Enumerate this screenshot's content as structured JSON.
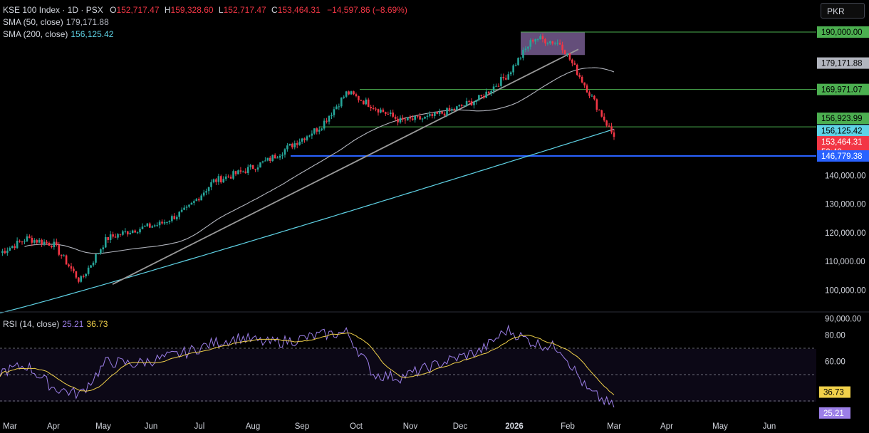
{
  "header": {
    "symbol_line": "KSE 100 Index · 1D · PSX",
    "open_label": "O",
    "open": "152,717.47",
    "high_label": "H",
    "high": "159,328.60",
    "low_label": "L",
    "low": "152,717.47",
    "close_label": "C",
    "close": "153,464.31",
    "change": "−14,597.86 (−8.69%)",
    "sma50_label": "SMA (50, close)",
    "sma50_value": "179,171.88",
    "sma200_label": "SMA (200, close)",
    "sma200_value": "156,125.42",
    "rsi_label": "RSI (14, close)",
    "rsi_value": "25.21",
    "rsi_ma_value": "36.73",
    "currency": "PKR"
  },
  "colors": {
    "up": "#26a69a",
    "down": "#f23645",
    "sma50": "#b2b5be",
    "sma200": "#5fd3e6",
    "trend": "#9a9a9a",
    "support": "#2962ff",
    "level": "#4caf50",
    "zone": "#8e6fae",
    "rsi": "#9c7fe8",
    "rsi_ma": "#f0d04a"
  },
  "chart_data": [
    {
      "type": "candlestick",
      "title": "KSE 100 Index · 1D · PSX",
      "ylim": [
        82000,
        194000
      ],
      "y_ticks": [
        "190,000.00",
        "140,000.00",
        "130,000.00",
        "120,000.00",
        "110,000.00",
        "100,000.00",
        "90,000.00"
      ],
      "x_ticks": [
        "Mar",
        "Apr",
        "May",
        "Jun",
        "Jul",
        "Aug",
        "Sep",
        "Oct",
        "Nov",
        "Dec",
        "2026",
        "Feb",
        "Mar",
        "Apr",
        "May",
        "Jun"
      ],
      "price_series_approx": [
        [
          "Mar",
          113000
        ],
        [
          "Apr",
          118000
        ],
        [
          "Apr-mid",
          116000
        ],
        [
          "May",
          103000
        ],
        [
          "May-mid",
          118000
        ],
        [
          "Jun",
          121000
        ],
        [
          "Jun-mid",
          123000
        ],
        [
          "Jul",
          128000
        ],
        [
          "Jul-mid",
          138000
        ],
        [
          "Aug",
          141000
        ],
        [
          "Aug-mid",
          145000
        ],
        [
          "Sep",
          151000
        ],
        [
          "Sep-mid",
          157000
        ],
        [
          "Oct",
          169000
        ],
        [
          "Oct-mid",
          164000
        ],
        [
          "Nov",
          159000
        ],
        [
          "Nov-mid",
          160000
        ],
        [
          "Dec",
          163000
        ],
        [
          "Dec-mid",
          167000
        ],
        [
          "2026",
          175000
        ],
        [
          "Jan-mid",
          188000
        ],
        [
          "Feb",
          186000
        ],
        [
          "Feb-mid",
          170000
        ],
        [
          "Feb-end",
          153464
        ]
      ],
      "series": [
        {
          "name": "SMA (50, close)",
          "last": 179171.88
        },
        {
          "name": "SMA (200, close)",
          "last": 156125.42
        }
      ],
      "levels": {
        "resistance_high": 190000.0,
        "sma50_last": 179171.88,
        "level_mid": 169971.07,
        "level_low": 156923.99,
        "sma200_last": 156125.42,
        "last_close": 153464.31,
        "support": 146779.38
      },
      "price_badges": [
        {
          "value": "190,000.00"
        },
        {
          "value": "179,171.88"
        },
        {
          "value": "169,971.07"
        },
        {
          "value": "156,923.99"
        },
        {
          "value": "156,125.42"
        },
        {
          "value": "153,464.31",
          "sub": "59:48"
        },
        {
          "value": "146,779.38"
        }
      ]
    },
    {
      "type": "line",
      "title": "RSI (14, close)",
      "ylim": [
        20,
        88
      ],
      "y_ticks": [
        "80.00",
        "60.00"
      ],
      "bands": [
        70,
        50,
        30
      ],
      "rsi_series_approx": [
        [
          "Mar",
          52
        ],
        [
          "Apr",
          57
        ],
        [
          "Apr-mid",
          40
        ],
        [
          "May",
          35
        ],
        [
          "May-mid",
          60
        ],
        [
          "Jun",
          58
        ],
        [
          "Jun-mid",
          62
        ],
        [
          "Jul",
          67
        ],
        [
          "Jul-mid",
          74
        ],
        [
          "Aug",
          78
        ],
        [
          "Aug-mid",
          74
        ],
        [
          "Sep",
          76
        ],
        [
          "Sep-mid",
          80
        ],
        [
          "Oct",
          82
        ],
        [
          "Oct-mid",
          50
        ],
        [
          "Nov",
          48
        ],
        [
          "Nov-mid",
          55
        ],
        [
          "Dec",
          62
        ],
        [
          "Dec-mid",
          68
        ],
        [
          "2026",
          84
        ],
        [
          "Jan-mid",
          74
        ],
        [
          "Feb",
          70
        ],
        [
          "Feb-mid",
          38
        ],
        [
          "Feb-end",
          25.21
        ]
      ],
      "series": [
        {
          "name": "RSI",
          "last": 25.21
        },
        {
          "name": "RSI MA",
          "last": 36.73
        }
      ],
      "badges": [
        {
          "value": "36.73"
        },
        {
          "value": "25.21"
        }
      ]
    }
  ]
}
